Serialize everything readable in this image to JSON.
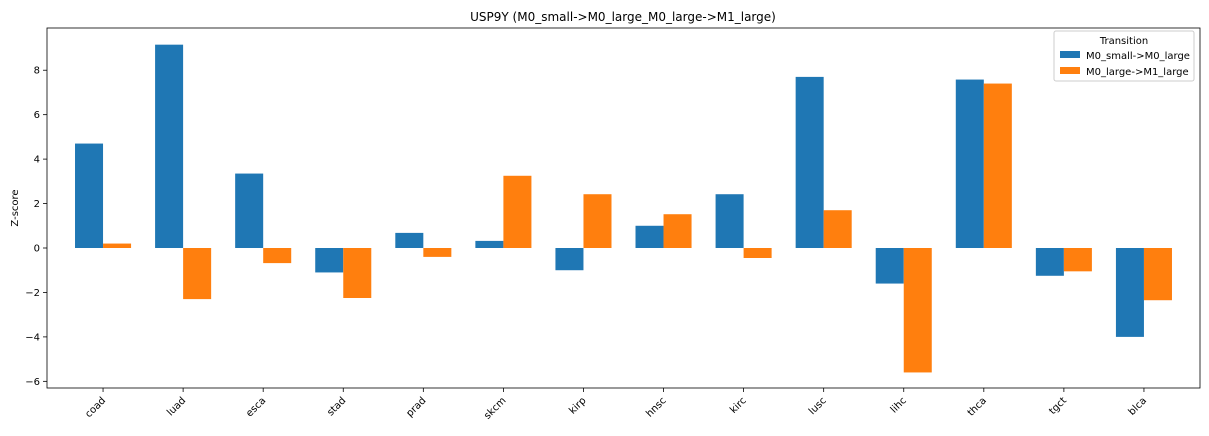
{
  "chart_data": {
    "type": "bar",
    "title": "USP9Y (M0_small->M0_large_M0_large->M1_large)",
    "xlabel": "",
    "ylabel": "Z-score",
    "categories": [
      "coad",
      "luad",
      "esca",
      "stad",
      "prad",
      "skcm",
      "kirp",
      "hnsc",
      "kirc",
      "lusc",
      "lihc",
      "thca",
      "tgct",
      "blca"
    ],
    "series": [
      {
        "name": "M0_small->M0_large",
        "color": "#1f77b4",
        "values": [
          4.7,
          9.15,
          3.35,
          -1.1,
          0.68,
          0.32,
          -1.0,
          1.0,
          2.42,
          7.7,
          -1.6,
          7.58,
          -1.25,
          -4.0
        ]
      },
      {
        "name": "M0_large->M1_large",
        "color": "#ff7f0e",
        "values": [
          0.2,
          -2.3,
          -0.68,
          -2.25,
          -0.4,
          3.25,
          2.42,
          1.52,
          -0.45,
          1.7,
          -5.6,
          7.4,
          -1.05,
          -2.35
        ]
      }
    ],
    "ylim": [
      -6.3,
      9.9
    ],
    "yticks": [
      -6,
      -4,
      -2,
      0,
      2,
      4,
      6,
      8
    ],
    "legend": {
      "title": "Transition",
      "placement": "top-right"
    },
    "grid": false
  }
}
